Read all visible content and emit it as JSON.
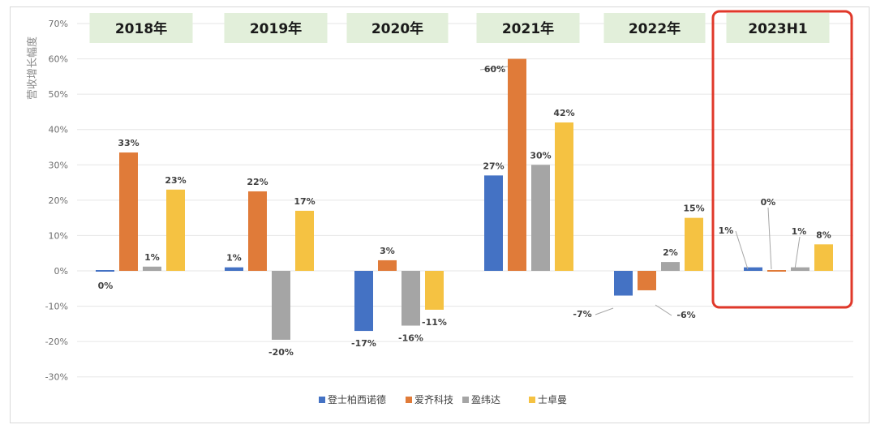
{
  "chart_data": {
    "type": "bar",
    "title": "",
    "ylabel": "营收增长幅度",
    "ylim": [
      -30,
      70
    ],
    "yticks": [
      -30,
      -20,
      -10,
      0,
      10,
      20,
      30,
      40,
      50,
      60,
      70
    ],
    "categories": [
      "2018年",
      "2019年",
      "2020年",
      "2021年",
      "2022年",
      "2023H1"
    ],
    "highlight_category": "2023H1",
    "grid": true,
    "legend_position": "bottom",
    "series": [
      {
        "name": "登士柏西诺德",
        "color": "#4472C4",
        "values": [
          -0.3,
          1,
          -17,
          27,
          -7,
          1
        ],
        "labels": [
          "0%",
          "1%",
          "-17%",
          "27%",
          "-7%",
          "1%"
        ]
      },
      {
        "name": "爱齐科技",
        "color": "#E07B39",
        "values": [
          33.5,
          22.5,
          3,
          60,
          -5.5,
          0.3
        ],
        "labels": [
          "33%",
          "22%",
          "3%",
          "60%",
          "-6%",
          "0%"
        ]
      },
      {
        "name": "盈纬达",
        "color": "#A5A5A5",
        "values": [
          1.2,
          -19.5,
          -15.5,
          30,
          2.5,
          1
        ],
        "labels": [
          "1%",
          "-20%",
          "-16%",
          "30%",
          "2%",
          "1%"
        ]
      },
      {
        "name": "士卓曼",
        "color": "#F5C242",
        "values": [
          23,
          17,
          -11,
          42,
          15,
          7.5
        ],
        "labels": [
          "23%",
          "17%",
          "-11%",
          "42%",
          "15%",
          "8%"
        ]
      }
    ],
    "colors": {
      "category_box": "#E2EFDA",
      "highlight_border": "#E0382A",
      "grid": "#e6e6e6"
    }
  }
}
